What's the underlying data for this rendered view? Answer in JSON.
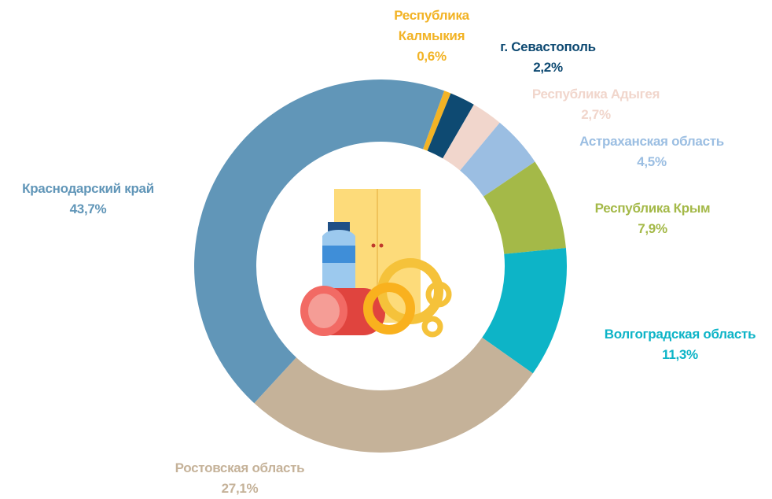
{
  "chart_data": {
    "type": "donut",
    "categories": [
      "Республика Калмыкия",
      "г. Севастополь",
      "Республика Адыгея",
      "Астраханская область",
      "Республика Крым",
      "Волгоградская область",
      "Ростовская область",
      "Краснодарский край"
    ],
    "values": [
      0.6,
      2.2,
      2.7,
      4.5,
      7.9,
      11.3,
      27.1,
      43.7
    ],
    "value_labels": [
      "0,6%",
      "2,2%",
      "2,7%",
      "4,5%",
      "7,9%",
      "11,3%",
      "27,1%",
      "43,7%"
    ],
    "colors": [
      "#f2b325",
      "#0e4a72",
      "#f1d6cc",
      "#9bbee2",
      "#a4b948",
      "#0db4c7",
      "#c5b299",
      "#6196b8"
    ]
  }
}
